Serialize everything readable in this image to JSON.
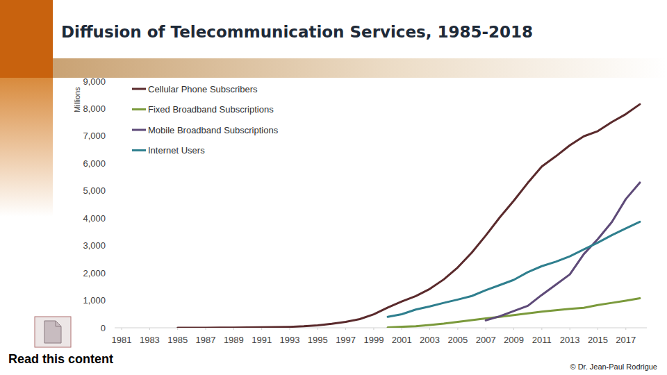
{
  "chart_data": {
    "type": "line",
    "title": "Diffusion of Telecommunication Services, 1985-2018",
    "y_label": "Millions",
    "annotations": [
      "Read this content",
      "© Dr. Jean-Paul Rodrigue"
    ],
    "x": [
      1985,
      1986,
      1987,
      1988,
      1989,
      1990,
      1991,
      1992,
      1993,
      1994,
      1995,
      1996,
      1997,
      1998,
      1999,
      2000,
      2001,
      2002,
      2003,
      2004,
      2005,
      2006,
      2007,
      2008,
      2009,
      2010,
      2011,
      2012,
      2013,
      2014,
      2015,
      2016,
      2017,
      2018
    ],
    "series": [
      {
        "name": "Cellular Phone Subscribers",
        "color": "#5a2a2c",
        "values": [
          1,
          2,
          3,
          4,
          6,
          11,
          16,
          23,
          34,
          56,
          91,
          145,
          215,
          318,
          490,
          738,
          961,
          1157,
          1418,
          1765,
          2205,
          2745,
          3368,
          4030,
          4640,
          5290,
          5890,
          6260,
          6660,
          6990,
          7180,
          7510,
          7800,
          8160
        ]
      },
      {
        "name": "Fixed Broadband Subscriptions",
        "color": "#7b9a3c",
        "values": [
          null,
          null,
          null,
          null,
          null,
          null,
          null,
          null,
          null,
          null,
          null,
          null,
          null,
          null,
          null,
          15,
          35,
          60,
          100,
          150,
          215,
          280,
          340,
          400,
          460,
          525,
          590,
          640,
          690,
          730,
          830,
          910,
          990,
          1080
        ]
      },
      {
        "name": "Mobile Broadband Subscriptions",
        "color": "#5e4a78",
        "values": [
          null,
          null,
          null,
          null,
          null,
          null,
          null,
          null,
          null,
          null,
          null,
          null,
          null,
          null,
          null,
          null,
          null,
          null,
          null,
          null,
          null,
          null,
          270,
          420,
          610,
          800,
          1200,
          1570,
          1950,
          2690,
          3240,
          3860,
          4700,
          5300
        ]
      },
      {
        "name": "Internet Users",
        "color": "#2f7f8e",
        "values": [
          null,
          null,
          null,
          null,
          null,
          null,
          null,
          null,
          null,
          null,
          null,
          null,
          null,
          null,
          null,
          400,
          495,
          665,
          780,
          910,
          1030,
          1160,
          1370,
          1560,
          1750,
          2030,
          2250,
          2410,
          2610,
          2860,
          3110,
          3380,
          3630,
          3870
        ]
      }
    ],
    "xlim": [
      1980.5,
      2018.5
    ],
    "xticks": [
      1981,
      1983,
      1985,
      1987,
      1989,
      1991,
      1993,
      1995,
      1997,
      1999,
      2001,
      2003,
      2005,
      2007,
      2009,
      2011,
      2013,
      2015,
      2017
    ],
    "ylim": [
      0,
      9000
    ],
    "yticks": [
      0,
      {
        "value": 1000,
        "label": "1,000"
      },
      {
        "value": 2000,
        "label": "2,000"
      },
      {
        "value": 3000,
        "label": "3,000"
      },
      {
        "value": 4000,
        "label": "4,000"
      },
      {
        "value": 5000,
        "label": "5,000"
      },
      {
        "value": 6000,
        "label": "6,000"
      },
      {
        "value": 7000,
        "label": "7,000"
      },
      {
        "value": 8000,
        "label": "8,000"
      },
      {
        "value": 9000,
        "label": "9,000"
      }
    ],
    "grid": false,
    "legend": "upper left"
  }
}
